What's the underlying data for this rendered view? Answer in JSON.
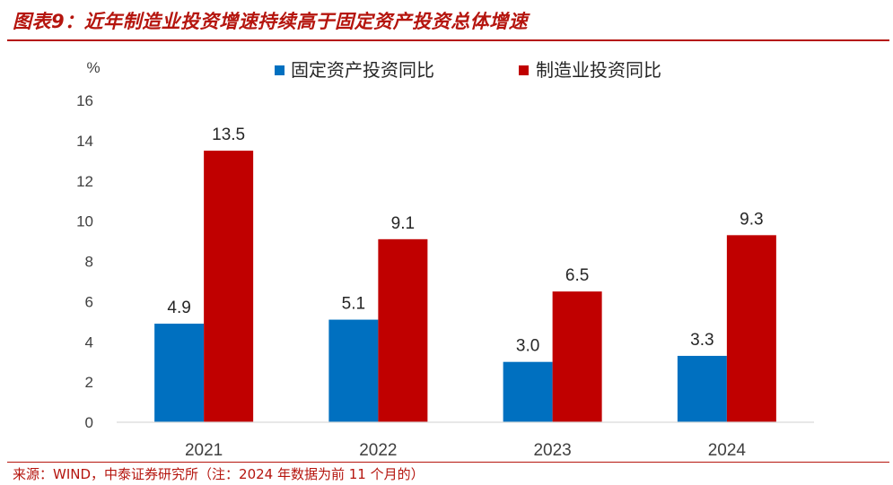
{
  "figure": {
    "title": "图表9：近年制造业投资增速持续高于固定资产投资总体增速",
    "source": "来源：WIND，中泰证券研究所（注：2024 年数据为前 11 个月的）"
  },
  "chart_data": {
    "type": "bar",
    "categories": [
      "2021",
      "2022",
      "2023",
      "2024"
    ],
    "series": [
      {
        "name": "固定资产投资同比",
        "values": [
          4.9,
          5.1,
          3.0,
          3.3
        ],
        "labels": [
          "4.9",
          "5.1",
          "3.0",
          "3.3"
        ],
        "color": "#0070c0"
      },
      {
        "name": "制造业投资同比",
        "values": [
          13.5,
          9.1,
          6.5,
          9.3
        ],
        "labels": [
          "13.5",
          "9.1",
          "6.5",
          "9.3"
        ],
        "color": "#c00000"
      }
    ],
    "ylabel": "%",
    "ylim": [
      0,
      16
    ],
    "yticks": [
      0,
      2,
      4,
      6,
      8,
      10,
      12,
      14,
      16
    ],
    "grid": false,
    "legend": "top-center"
  }
}
